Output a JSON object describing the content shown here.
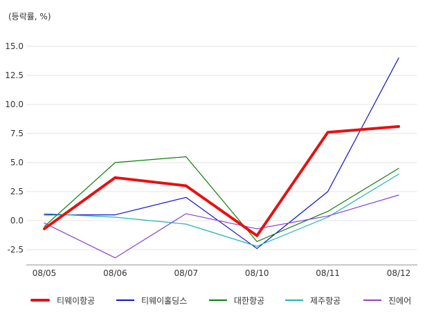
{
  "chart_data": {
    "type": "line",
    "ylabel": "(등락률, %)",
    "categories": [
      "08/05",
      "08/06",
      "08/07",
      "08/10",
      "08/11",
      "08/12"
    ],
    "ylim": [
      -3.8,
      15.0
    ],
    "yticks": [
      15.0,
      12.5,
      10.0,
      7.5,
      5.0,
      2.5,
      0.0,
      -2.5
    ],
    "ytick_labels": [
      "15.0",
      "12.5",
      "10.0",
      "7.5",
      "5.0",
      "2.5",
      "0.0",
      "-2.5"
    ],
    "grid": true,
    "legend_position": "bottom",
    "series": [
      {
        "name": "티웨이항공",
        "color": "#e8100f",
        "emphasis": true,
        "values": [
          -0.7,
          3.7,
          3.0,
          -1.3,
          7.6,
          8.1
        ]
      },
      {
        "name": "티웨이홀딩스",
        "color": "#1010c8",
        "emphasis": false,
        "values": [
          0.5,
          0.5,
          2.0,
          -2.4,
          2.5,
          14.0
        ]
      },
      {
        "name": "대한항공",
        "color": "#0a7d0a",
        "emphasis": false,
        "values": [
          -0.5,
          5.0,
          5.5,
          -1.8,
          0.8,
          4.5
        ]
      },
      {
        "name": "제주항공",
        "color": "#22b2b2",
        "emphasis": false,
        "values": [
          0.6,
          0.3,
          -0.3,
          -2.2,
          0.3,
          4.0
        ]
      },
      {
        "name": "진에어",
        "color": "#8a3fd6",
        "emphasis": false,
        "values": [
          -0.2,
          -3.2,
          0.6,
          -0.7,
          0.4,
          2.2
        ]
      }
    ]
  }
}
